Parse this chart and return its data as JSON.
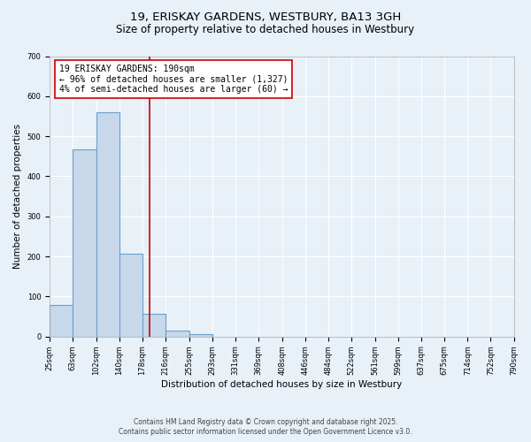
{
  "title": "19, ERISKAY GARDENS, WESTBURY, BA13 3GH",
  "subtitle": "Size of property relative to detached houses in Westbury",
  "xlabel": "Distribution of detached houses by size in Westbury",
  "ylabel": "Number of detached properties",
  "bar_left_edges": [
    25,
    63,
    102,
    140,
    178,
    216,
    255,
    293,
    331,
    369,
    408,
    446,
    484,
    522,
    561,
    599,
    637,
    675,
    714,
    752
  ],
  "bar_widths": [
    38,
    39,
    38,
    38,
    38,
    39,
    38,
    38,
    38,
    39,
    38,
    38,
    38,
    39,
    38,
    38,
    38,
    39,
    38,
    38
  ],
  "bar_heights": [
    78,
    467,
    560,
    207,
    57,
    15,
    5,
    0,
    0,
    0,
    0,
    0,
    0,
    0,
    0,
    0,
    0,
    0,
    0,
    0
  ],
  "bar_color": "#c8d8eb",
  "bar_edge_color": "#6aa0c8",
  "bar_edge_width": 0.8,
  "red_line_x": 190,
  "red_line_color": "#cc0000",
  "annotation_text": "19 ERISKAY GARDENS: 190sqm\n← 96% of detached houses are smaller (1,327)\n4% of semi-detached houses are larger (60) →",
  "annotation_box_color": "#ffffff",
  "annotation_box_edge_color": "#cc0000",
  "xlim": [
    25,
    790
  ],
  "ylim": [
    0,
    700
  ],
  "xtick_positions": [
    25,
    63,
    102,
    140,
    178,
    216,
    255,
    293,
    331,
    369,
    408,
    446,
    484,
    522,
    561,
    599,
    637,
    675,
    714,
    752,
    790
  ],
  "xtick_labels": [
    "25sqm",
    "63sqm",
    "102sqm",
    "140sqm",
    "178sqm",
    "216sqm",
    "255sqm",
    "293sqm",
    "331sqm",
    "369sqm",
    "408sqm",
    "446sqm",
    "484sqm",
    "522sqm",
    "561sqm",
    "599sqm",
    "637sqm",
    "675sqm",
    "714sqm",
    "752sqm",
    "790sqm"
  ],
  "ytick_positions": [
    0,
    100,
    200,
    300,
    400,
    500,
    600,
    700
  ],
  "background_color": "#e8f0f8",
  "plot_bg_color": "#e8f0f8",
  "grid_color": "#ffffff",
  "footer_line1": "Contains HM Land Registry data © Crown copyright and database right 2025.",
  "footer_line2": "Contains public sector information licensed under the Open Government Licence v3.0.",
  "title_fontsize": 9.5,
  "subtitle_fontsize": 8.5,
  "axis_label_fontsize": 7.5,
  "tick_fontsize": 6.0,
  "annotation_fontsize": 7.0,
  "footer_fontsize": 5.5
}
